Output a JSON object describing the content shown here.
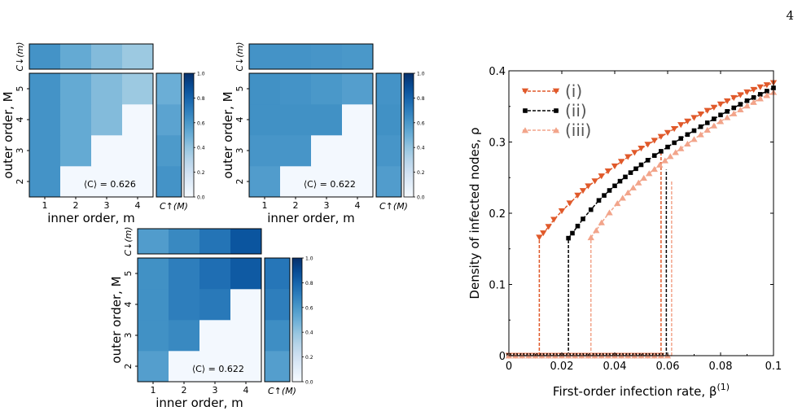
{
  "page_number": "4",
  "colors": {
    "line_i": "#e0592a",
    "line_ii": "#000000",
    "line_iii": "#f2a48a",
    "cmap_low": "#f7fbff",
    "cmap_high": "#08306b"
  },
  "chart_data": [
    {
      "type": "heatmap",
      "id": "heatmap-a",
      "x_categories": [
        "1",
        "2",
        "3",
        "4"
      ],
      "y_categories": [
        "2",
        "3",
        "4",
        "5"
      ],
      "xlabel": "inner order, m",
      "ylabel": "outer order, M",
      "matrix": [
        [
          0.62,
          null,
          null,
          null
        ],
        [
          0.62,
          0.52,
          null,
          null
        ],
        [
          0.62,
          0.52,
          0.44,
          null
        ],
        [
          0.62,
          0.52,
          0.44,
          0.38
        ]
      ],
      "top_bar": {
        "label": "C↓(m)",
        "values": [
          0.62,
          0.52,
          0.44,
          0.38
        ]
      },
      "side_bar": {
        "label": "C↑(M)",
        "values": [
          0.62,
          0.59,
          0.55,
          0.5
        ]
      },
      "annotation": "⟨C⟩ = 0.626",
      "colorbar": {
        "ticks": [
          "0.0",
          "0.2",
          "0.4",
          "0.6",
          "0.8",
          "1.0"
        ],
        "range": [
          0,
          1
        ]
      }
    },
    {
      "type": "heatmap",
      "id": "heatmap-b",
      "x_categories": [
        "1",
        "2",
        "3",
        "4"
      ],
      "y_categories": [
        "2",
        "3",
        "4",
        "5"
      ],
      "xlabel": "inner order, m",
      "ylabel": "outer order, M",
      "matrix": [
        [
          0.58,
          null,
          null,
          null
        ],
        [
          0.61,
          0.61,
          null,
          null
        ],
        [
          0.63,
          0.63,
          0.63,
          null
        ],
        [
          0.63,
          0.62,
          0.6,
          0.57
        ]
      ],
      "top_bar": {
        "label": "C↓(m)",
        "values": [
          0.62,
          0.62,
          0.61,
          0.6
        ]
      },
      "side_bar": {
        "label": "C↑(M)",
        "values": [
          0.58,
          0.61,
          0.63,
          0.62
        ]
      },
      "annotation": "⟨C⟩ = 0.622",
      "colorbar": {
        "ticks": [
          "0.0",
          "0.2",
          "0.4",
          "0.6",
          "0.8",
          "1.0"
        ],
        "range": [
          0,
          1
        ]
      }
    },
    {
      "type": "heatmap",
      "id": "heatmap-c",
      "x_categories": [
        "1",
        "2",
        "3",
        "4"
      ],
      "y_categories": [
        "2",
        "3",
        "4",
        "5"
      ],
      "xlabel": "inner order, m",
      "ylabel": "outer order, M",
      "matrix": [
        [
          0.57,
          null,
          null,
          null
        ],
        [
          0.63,
          0.66,
          null,
          null
        ],
        [
          0.63,
          0.7,
          0.72,
          null
        ],
        [
          0.63,
          0.7,
          0.76,
          0.84
        ]
      ],
      "top_bar": {
        "label": "C↓(m)",
        "values": [
          0.58,
          0.66,
          0.74,
          0.86
        ]
      },
      "side_bar": {
        "label": "C↑(M)",
        "values": [
          0.57,
          0.64,
          0.7,
          0.73
        ]
      },
      "annotation": "⟨C⟩ = 0.622",
      "colorbar": {
        "ticks": [
          "0.0",
          "0.2",
          "0.4",
          "0.6",
          "0.8",
          "1.0"
        ],
        "range": [
          0,
          1
        ]
      }
    },
    {
      "type": "line",
      "id": "line-chart",
      "xlabel": "First-order infection rate, β",
      "xlabel_sup": "(1)",
      "ylabel": "Density of infected nodes, ρ",
      "xlim": [
        0,
        0.1
      ],
      "ylim": [
        0,
        0.4
      ],
      "x_ticks": [
        "0",
        "0.02",
        "0.04",
        "0.06",
        "0.08",
        "0.1"
      ],
      "y_ticks": [
        "0",
        "0.1",
        "0.2",
        "0.3",
        "0.4"
      ],
      "legend_position": "top-left",
      "series": [
        {
          "name": "(i)",
          "marker": "triangle-down",
          "color": "#e0592a",
          "upper": [
            [
              0.0115,
              0.166
            ],
            [
              0.013,
              0.172
            ],
            [
              0.015,
              0.181
            ],
            [
              0.017,
              0.191
            ],
            [
              0.02,
              0.203
            ],
            [
              0.023,
              0.214
            ],
            [
              0.026,
              0.225
            ],
            [
              0.03,
              0.238
            ],
            [
              0.035,
              0.252
            ],
            [
              0.04,
              0.266
            ],
            [
              0.045,
              0.279
            ],
            [
              0.05,
              0.291
            ],
            [
              0.055,
              0.302
            ],
            [
              0.06,
              0.313
            ],
            [
              0.065,
              0.324
            ],
            [
              0.07,
              0.334
            ],
            [
              0.075,
              0.344
            ],
            [
              0.08,
              0.353
            ],
            [
              0.085,
              0.362
            ],
            [
              0.09,
              0.37
            ],
            [
              0.095,
              0.377
            ],
            [
              0.1,
              0.383
            ]
          ],
          "lower_end": 0.0575
        },
        {
          "name": "(ii)",
          "marker": "square",
          "color": "#000000",
          "upper": [
            [
              0.0225,
              0.165
            ],
            [
              0.024,
              0.172
            ],
            [
              0.026,
              0.182
            ],
            [
              0.028,
              0.192
            ],
            [
              0.031,
              0.205
            ],
            [
              0.034,
              0.218
            ],
            [
              0.038,
              0.232
            ],
            [
              0.042,
              0.245
            ],
            [
              0.046,
              0.257
            ],
            [
              0.05,
              0.268
            ],
            [
              0.055,
              0.281
            ],
            [
              0.06,
              0.293
            ],
            [
              0.065,
              0.305
            ],
            [
              0.07,
              0.316
            ],
            [
              0.075,
              0.327
            ],
            [
              0.08,
              0.338
            ],
            [
              0.085,
              0.348
            ],
            [
              0.09,
              0.358
            ],
            [
              0.095,
              0.367
            ],
            [
              0.1,
              0.376
            ]
          ],
          "lower_end": 0.0595
        },
        {
          "name": "(iii)",
          "marker": "triangle-up",
          "color": "#f2a48a",
          "upper": [
            [
              0.031,
              0.166
            ],
            [
              0.033,
              0.176
            ],
            [
              0.035,
              0.187
            ],
            [
              0.038,
              0.201
            ],
            [
              0.041,
              0.214
            ],
            [
              0.045,
              0.229
            ],
            [
              0.049,
              0.243
            ],
            [
              0.053,
              0.256
            ],
            [
              0.057,
              0.268
            ],
            [
              0.061,
              0.28
            ],
            [
              0.065,
              0.291
            ],
            [
              0.07,
              0.304
            ],
            [
              0.075,
              0.317
            ],
            [
              0.08,
              0.329
            ],
            [
              0.085,
              0.34
            ],
            [
              0.09,
              0.351
            ],
            [
              0.095,
              0.361
            ],
            [
              0.1,
              0.37
            ]
          ],
          "lower_end": 0.0615
        }
      ]
    }
  ]
}
